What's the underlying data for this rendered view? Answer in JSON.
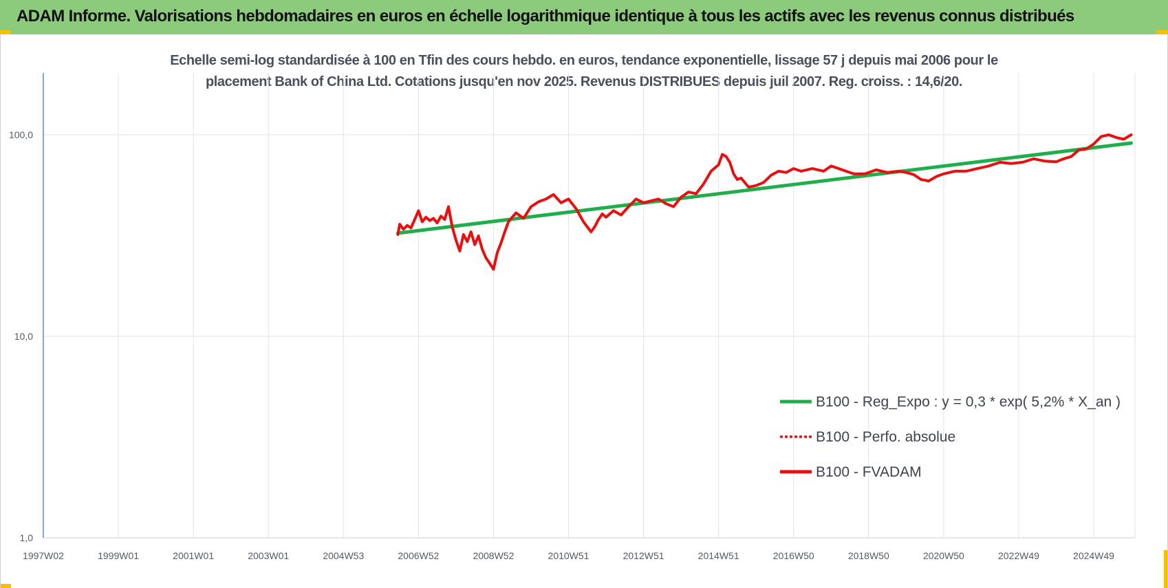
{
  "header": {
    "title": "ADAM Informe. Valorisations hebdomadaires en euros en échelle logarithmique identique à tous les actifs avec les revenus connus distribués"
  },
  "colors": {
    "header_bg": "#8ccb7c",
    "regression": "#1fae4b",
    "fvadam": "#e8100f",
    "perfo": "#e8100f",
    "grid": "#dfe3e8"
  },
  "chart_data": {
    "type": "line",
    "title_line1": "Echelle semi-log standardisée à 100 en Tfin des cours hebdo. en euros, tendance exponentielle, lissage 57 j depuis mai 2006 pour le",
    "title_line2": "placement Bank of China Ltd. Cotations jusqu'en nov 2025. Revenus DISTRIBUES depuis juil 2007. Reg. croiss. : 14,6/20.",
    "y_scale": "log",
    "ylim": [
      1,
      200
    ],
    "xlim": [
      1997.0,
      2026.1
    ],
    "y_ticks": [
      {
        "value": 1,
        "label": "1,0"
      },
      {
        "value": 10,
        "label": "10,0"
      },
      {
        "value": 100,
        "label": "100,0"
      }
    ],
    "x_ticks": [
      {
        "value": 1997.0,
        "label": "1997W02"
      },
      {
        "value": 1999.0,
        "label": "1999W01"
      },
      {
        "value": 2001.0,
        "label": "2001W01"
      },
      {
        "value": 2003.0,
        "label": "2003W01"
      },
      {
        "value": 2005.0,
        "label": "2004W53"
      },
      {
        "value": 2007.0,
        "label": "2006W52"
      },
      {
        "value": 2009.0,
        "label": "2008W52"
      },
      {
        "value": 2011.0,
        "label": "2010W51"
      },
      {
        "value": 2013.0,
        "label": "2012W51"
      },
      {
        "value": 2015.0,
        "label": "2014W51"
      },
      {
        "value": 2017.0,
        "label": "2016W50"
      },
      {
        "value": 2019.0,
        "label": "2018W50"
      },
      {
        "value": 2021.0,
        "label": "2020W50"
      },
      {
        "value": 2023.0,
        "label": "2022W49"
      },
      {
        "value": 2025.0,
        "label": "2024W49"
      }
    ],
    "grid": true,
    "legend_position": "bottom-right",
    "series": [
      {
        "name": "B100 - Reg_Expo : y = 0,3 * exp( 5,2% *  X_an )",
        "style": "solid-green",
        "x": [
          2006.45,
          2026.0
        ],
        "y": [
          32.5,
          91.0
        ]
      },
      {
        "name": "B100 - Perfo. absolue",
        "style": "dotted-red",
        "x": [],
        "y": []
      },
      {
        "name": "B100 - FVADAM",
        "style": "solid-red",
        "x": [
          2006.45,
          2006.5,
          2006.6,
          2006.7,
          2006.8,
          2006.9,
          2007.0,
          2007.1,
          2007.2,
          2007.3,
          2007.4,
          2007.5,
          2007.6,
          2007.7,
          2007.8,
          2007.9,
          2008.0,
          2008.1,
          2008.2,
          2008.3,
          2008.4,
          2008.5,
          2008.6,
          2008.7,
          2008.8,
          2008.9,
          2009.0,
          2009.1,
          2009.2,
          2009.3,
          2009.4,
          2009.5,
          2009.6,
          2009.8,
          2010.0,
          2010.2,
          2010.4,
          2010.6,
          2010.8,
          2011.0,
          2011.2,
          2011.4,
          2011.6,
          2011.7,
          2011.8,
          2011.9,
          2012.0,
          2012.2,
          2012.4,
          2012.6,
          2012.8,
          2013.0,
          2013.2,
          2013.4,
          2013.6,
          2013.8,
          2014.0,
          2014.2,
          2014.4,
          2014.6,
          2014.8,
          2015.0,
          2015.1,
          2015.2,
          2015.3,
          2015.4,
          2015.5,
          2015.6,
          2015.8,
          2016.0,
          2016.2,
          2016.4,
          2016.6,
          2016.8,
          2017.0,
          2017.2,
          2017.5,
          2017.8,
          2018.0,
          2018.3,
          2018.6,
          2018.9,
          2019.2,
          2019.5,
          2019.8,
          2020.0,
          2020.2,
          2020.4,
          2020.6,
          2020.8,
          2021.0,
          2021.3,
          2021.6,
          2021.9,
          2022.2,
          2022.5,
          2022.8,
          2023.1,
          2023.4,
          2023.7,
          2024.0,
          2024.2,
          2024.4,
          2024.6,
          2024.8,
          2025.0,
          2025.2,
          2025.4,
          2025.6,
          2025.8,
          2026.0
        ],
        "y": [
          32.0,
          36.0,
          34.0,
          35.5,
          34.5,
          38.0,
          42.0,
          37.0,
          39.0,
          37.5,
          38.5,
          36.5,
          39.5,
          38.0,
          44.0,
          35.0,
          30.0,
          26.5,
          32.0,
          29.5,
          33.0,
          28.5,
          31.5,
          27.0,
          24.5,
          23.0,
          21.5,
          26.0,
          29.0,
          33.0,
          37.0,
          39.0,
          41.0,
          38.5,
          44.0,
          46.5,
          48.0,
          50.5,
          46.0,
          48.0,
          43.0,
          37.0,
          33.0,
          35.0,
          38.0,
          40.5,
          39.0,
          42.0,
          40.0,
          44.0,
          48.0,
          46.0,
          47.0,
          48.0,
          45.5,
          44.0,
          49.0,
          52.0,
          51.0,
          57.0,
          66.0,
          71.0,
          80.0,
          78.0,
          73.0,
          64.0,
          60.0,
          61.0,
          55.0,
          56.0,
          58.0,
          63.0,
          66.0,
          65.0,
          68.0,
          66.0,
          68.0,
          66.0,
          70.0,
          67.0,
          64.0,
          64.0,
          67.0,
          65.0,
          66.0,
          65.0,
          63.5,
          60.0,
          59.0,
          62.0,
          64.0,
          66.0,
          66.0,
          68.0,
          70.0,
          73.0,
          72.0,
          73.0,
          76.0,
          74.0,
          73.5,
          76.0,
          78.0,
          84.0,
          85.0,
          90.0,
          98.0,
          100.0,
          97.0,
          95.0,
          100.0
        ]
      }
    ]
  }
}
